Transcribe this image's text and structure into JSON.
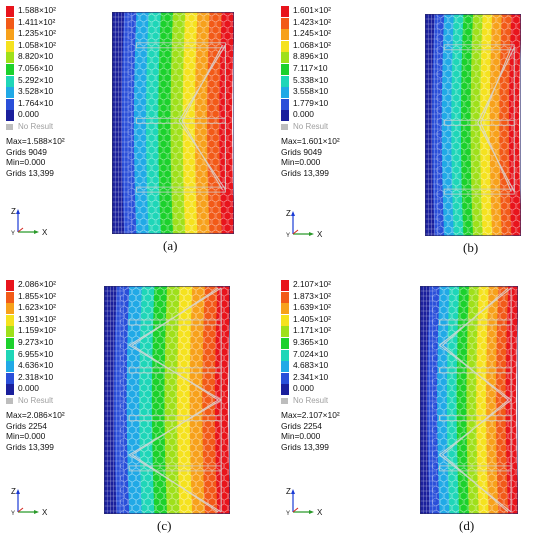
{
  "panels": [
    {
      "id": "a",
      "caption": "(a)",
      "legend": [
        "1.588×10²",
        "1.411×10²",
        "1.235×10²",
        "1.058×10²",
        "8.820×10",
        "7.056×10",
        "5.292×10",
        "3.528×10",
        "1.764×10",
        "0.000"
      ],
      "no_result": "No Result",
      "info": [
        "Max=1.588×10²",
        "Grids 9049",
        "Min=0.000",
        "Grids 13,399"
      ],
      "braces": "single-v"
    },
    {
      "id": "b",
      "caption": "(b)",
      "legend": [
        "1.601×10²",
        "1.423×10²",
        "1.245×10²",
        "1.068×10²",
        "8.896×10",
        "7.117×10",
        "5.338×10",
        "3.558×10",
        "1.779×10",
        "0.000"
      ],
      "no_result": "No Result",
      "info": [
        "Max=1.601×10²",
        "Grids 9049",
        "Min=0.000",
        "Grids 13,399"
      ],
      "braces": "single-v"
    },
    {
      "id": "c",
      "caption": "(c)",
      "legend": [
        "2.086×10²",
        "1.855×10²",
        "1.623×10²",
        "1.391×10²",
        "1.159×10²",
        "9.273×10",
        "6.955×10",
        "4.636×10",
        "2.318×10",
        "0.000"
      ],
      "no_result": "No Result",
      "info": [
        "Max=2.086×10²",
        "Grids 2254",
        "Min=0.000",
        "Grids 13,399"
      ],
      "braces": "double-v"
    },
    {
      "id": "d",
      "caption": "(d)",
      "legend": [
        "2.107×10²",
        "1.873×10²",
        "1.639×10²",
        "1.405×10²",
        "1.171×10²",
        "9.365×10",
        "7.024×10",
        "4.683×10",
        "2.341×10",
        "0.000"
      ],
      "no_result": "No Result",
      "info": [
        "Max=2.107×10²",
        "Grids 2254",
        "Min=0.000",
        "Grids 13,399"
      ],
      "braces": "double-v"
    }
  ],
  "legend_colors": [
    "#e8141c",
    "#f25a18",
    "#f7a11b",
    "#f5e21e",
    "#9fe01a",
    "#1cd12c",
    "#1fd6b8",
    "#21a9e6",
    "#2a4fd9",
    "#1a1f9c"
  ],
  "axis": {
    "z": "Z",
    "y": "Y",
    "x": "X"
  }
}
